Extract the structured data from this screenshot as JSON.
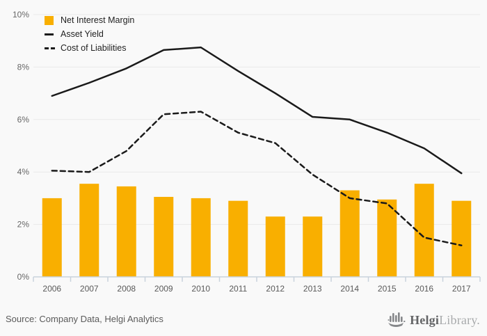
{
  "chart_data": {
    "type": "combo",
    "title": "",
    "categories": [
      "2006",
      "2007",
      "2008",
      "2009",
      "2010",
      "2011",
      "2012",
      "2013",
      "2014",
      "2015",
      "2016",
      "2017"
    ],
    "series": [
      {
        "name": "Net Interest Margin",
        "type": "bar",
        "style": "bar",
        "color": "#F9AF00",
        "values": [
          3.0,
          3.55,
          3.45,
          3.05,
          3.0,
          2.9,
          2.3,
          2.3,
          3.3,
          2.95,
          3.55,
          2.9
        ]
      },
      {
        "name": "Asset Yield",
        "type": "line",
        "style": "solid",
        "color": "#1a1a1a",
        "values": [
          6.9,
          7.4,
          7.95,
          8.65,
          8.75,
          7.85,
          7.0,
          6.1,
          6.0,
          5.5,
          4.9,
          3.95
        ]
      },
      {
        "name": "Cost of Liabilities",
        "type": "line",
        "style": "dashed",
        "color": "#1a1a1a",
        "values": [
          4.05,
          4.0,
          4.8,
          6.2,
          6.3,
          5.5,
          5.1,
          3.9,
          3.0,
          2.8,
          1.5,
          1.2
        ]
      }
    ],
    "xlabel": "",
    "ylabel": "",
    "ylim": [
      0,
      10
    ],
    "y_tick_step": 2,
    "y_ticks": [
      "0%",
      "2%",
      "4%",
      "6%",
      "8%",
      "10%"
    ],
    "grid": true,
    "legend_position": "top-left"
  },
  "colors": {
    "background": "#f9f9f9",
    "bar": "#F9AF00",
    "line": "#1a1a1a",
    "gridline": "#e9e9e9",
    "axis": "#c9d2dc",
    "tick_label": "#666666",
    "x_label": "#595959"
  },
  "footer": {
    "source": "Source: Company Data, Helgi Analytics",
    "logo": {
      "bold": "Helgi",
      "light": "Library."
    }
  }
}
